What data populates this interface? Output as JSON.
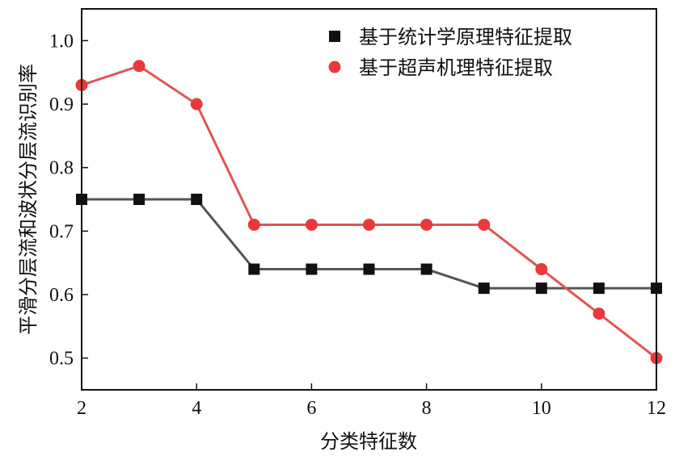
{
  "chart_data": {
    "type": "line",
    "xlabel": "分类特征数",
    "ylabel": "平滑分层流和波状分层流识别率",
    "xlim": [
      2,
      12
    ],
    "ylim": [
      0.45,
      1.05
    ],
    "xticks": [
      2,
      4,
      6,
      8,
      10,
      12
    ],
    "yticks": [
      0.5,
      0.6,
      0.7,
      0.8,
      0.9,
      1.0
    ],
    "ytick_labels": [
      "0.5",
      "0.6",
      "0.7",
      "0.8",
      "0.9",
      "1.0"
    ],
    "legend_position": "top-right",
    "grid": false,
    "x": [
      2,
      3,
      4,
      5,
      6,
      7,
      8,
      9,
      10,
      11,
      12
    ],
    "series": [
      {
        "name": "基于统计学原理特征提取",
        "marker": "square",
        "marker_color": "#111111",
        "line_color": "#555555",
        "values": [
          0.75,
          0.75,
          0.75,
          0.64,
          0.64,
          0.64,
          0.64,
          0.61,
          0.61,
          0.61,
          0.61
        ]
      },
      {
        "name": "基于超声机理特征提取",
        "marker": "circle",
        "marker_color": "#e83a3a",
        "line_color": "#e05555",
        "values": [
          0.93,
          0.96,
          0.9,
          0.71,
          0.71,
          0.71,
          0.71,
          0.71,
          0.64,
          0.57,
          0.5
        ]
      }
    ]
  }
}
